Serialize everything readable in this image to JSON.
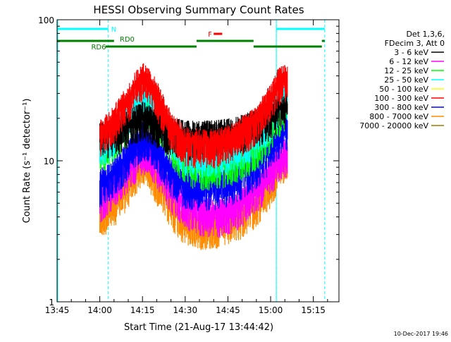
{
  "chart_data": {
    "type": "line",
    "title": "HESSI Observing Summary Count Rates",
    "xlabel": "Start Time (21-Aug-17 13:44:42)",
    "ylabel": "Count Rate (s⁻¹ detector⁻¹)",
    "y_scale": "log",
    "ylim": [
      1,
      100
    ],
    "xlim": [
      "13:45",
      "15:24"
    ],
    "x_ticks": [
      "13:45",
      "14:00",
      "14:15",
      "14:30",
      "14:45",
      "15:00",
      "15:15"
    ],
    "y_ticks": [
      "1",
      "10",
      "100"
    ],
    "grid": false,
    "legend_position": "top-right",
    "legend_header": [
      "Det 1,3,6,",
      "FDecim 3, Att 0"
    ],
    "footer_date": "10-Dec-2017 19:46",
    "x_times": [
      "14:00",
      "14:05",
      "14:10",
      "14:13",
      "14:15",
      "14:17",
      "14:20",
      "14:25",
      "14:30",
      "14:35",
      "14:40",
      "14:45",
      "14:50",
      "14:55",
      "15:00",
      "15:02",
      "15:05"
    ],
    "series": [
      {
        "name": "3 - 6 keV",
        "color": "#000000",
        "values": [
          15.5,
          16.5,
          18.5,
          20.0,
          21.0,
          20.5,
          19.0,
          16.5,
          15.5,
          15.5,
          15.5,
          16.0,
          17.0,
          19.0,
          21.5,
          23.0,
          25.0
        ]
      },
      {
        "name": "6 - 12 keV",
        "color": "#ff00ff",
        "values": [
          5.5,
          7.0,
          9.0,
          11.0,
          12.5,
          12.0,
          10.0,
          6.5,
          5.0,
          4.5,
          4.3,
          4.5,
          5.2,
          6.5,
          8.5,
          10.0,
          11.5
        ]
      },
      {
        "name": "12 - 25 keV",
        "color": "#00ff00",
        "values": [
          12.0,
          15.0,
          20.0,
          25.0,
          28.0,
          27.0,
          22.0,
          14.0,
          10.0,
          9.5,
          9.5,
          10.0,
          11.0,
          13.0,
          17.0,
          21.0,
          25.0
        ]
      },
      {
        "name": "25 - 50 keV",
        "color": "#00ffff",
        "values": [
          13.0,
          16.0,
          22.0,
          28.0,
          31.0,
          30.0,
          24.0,
          16.0,
          12.0,
          11.5,
          11.5,
          12.0,
          13.5,
          16.0,
          21.0,
          26.0,
          30.0
        ]
      },
      {
        "name": "50 - 100 keV",
        "color": "#ffff00",
        "values": []
      },
      {
        "name": "100 - 300 keV",
        "color": "#ff0000",
        "values": [
          16.0,
          20.0,
          28.0,
          36.0,
          40.0,
          38.0,
          30.0,
          18.0,
          14.0,
          13.5,
          13.5,
          14.5,
          16.5,
          20.0,
          28.0,
          35.0,
          40.0
        ]
      },
      {
        "name": "300 - 800 keV",
        "color": "#0000ff",
        "values": [
          7.0,
          8.5,
          11.0,
          14.0,
          15.5,
          15.0,
          12.5,
          8.5,
          7.0,
          6.8,
          6.8,
          7.2,
          8.0,
          9.5,
          12.5,
          15.0,
          18.0
        ]
      },
      {
        "name": "800 - 7000 keV",
        "color": "#ff8c00",
        "values": [
          4.2,
          5.2,
          7.0,
          9.0,
          10.0,
          9.5,
          7.5,
          5.0,
          3.8,
          3.6,
          3.6,
          3.8,
          4.3,
          5.2,
          7.0,
          8.5,
          11.0
        ]
      },
      {
        "name": "7000 - 20000 keV",
        "color": "#a07800",
        "values": []
      }
    ],
    "annotations": [
      {
        "label": "N",
        "color": "#00ffff"
      },
      {
        "label": "RD0",
        "color": "#008000"
      },
      {
        "label": "RD6",
        "color": "#008000"
      },
      {
        "label": "F",
        "color": "#ff0000"
      }
    ],
    "night_lines": [
      "14:03",
      "15:02",
      "15:19"
    ]
  }
}
